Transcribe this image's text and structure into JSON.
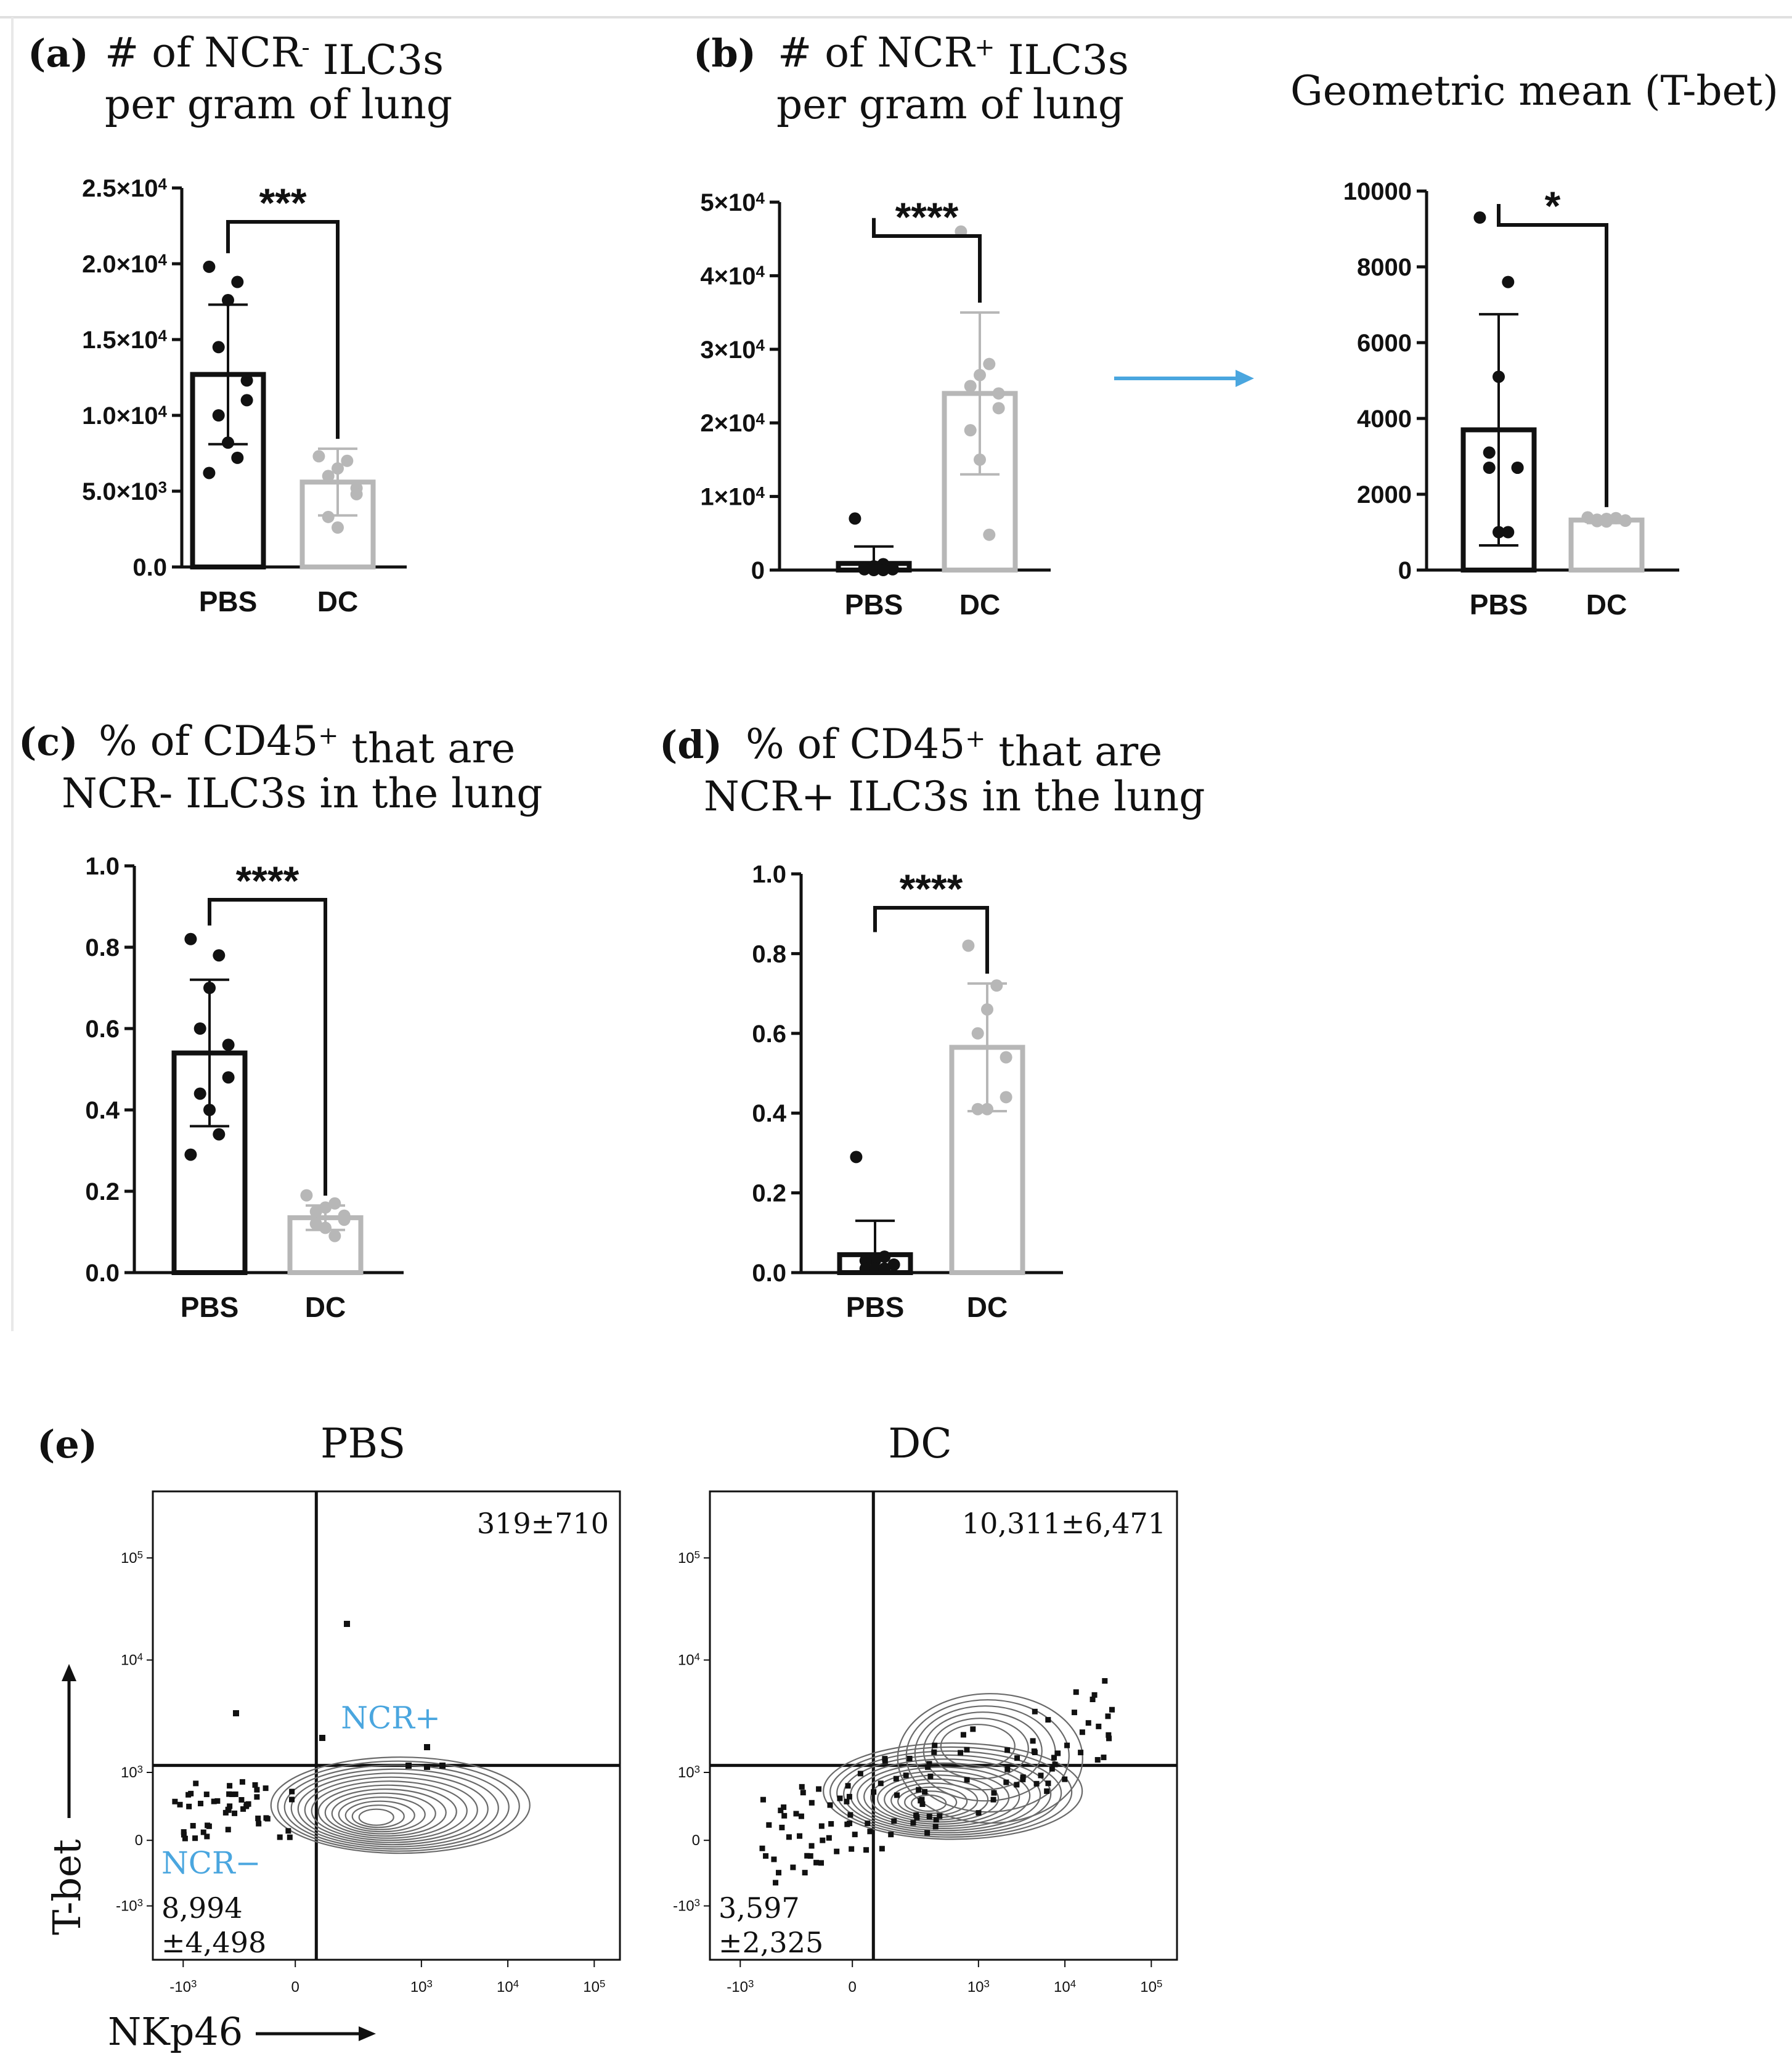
{
  "colors": {
    "pbs": "#111111",
    "dc": "#b7b7b7",
    "accent": "#4aa6df",
    "axis": "#111111"
  },
  "chart_data": [
    {
      "id": "a",
      "type": "bar",
      "panel_label": "(a)",
      "title_line1": "# of NCR",
      "title_sup": "-",
      "title_rest": " ILC3s",
      "title_line2": "per gram of lung",
      "categories": [
        "PBS",
        "DC"
      ],
      "values": [
        12700,
        5600
      ],
      "error": [
        4600,
        2200
      ],
      "points": [
        [
          19800,
          18800,
          17600,
          14500,
          12300,
          11000,
          10000,
          8200,
          7200,
          6200
        ],
        [
          7300,
          7000,
          6500,
          6000,
          5200,
          4800,
          3300,
          2600
        ]
      ],
      "ylim": [
        0,
        25000
      ],
      "ticks": [
        {
          "v": 0,
          "b": "0.0",
          "e": ""
        },
        {
          "v": 5000,
          "b": "5.0×10",
          "e": "3"
        },
        {
          "v": 10000,
          "b": "1.0×10",
          "e": "4"
        },
        {
          "v": 15000,
          "b": "1.5×10",
          "e": "4"
        },
        {
          "v": 20000,
          "b": "2.0×10",
          "e": "4"
        },
        {
          "v": 25000,
          "b": "2.5×10",
          "e": "4"
        }
      ],
      "significance": "***"
    },
    {
      "id": "b",
      "type": "bar",
      "panel_label": "(b)",
      "title_line1": "# of NCR",
      "title_sup": "+",
      "title_rest": " ILC3s",
      "title_line2": "per gram of lung",
      "categories": [
        "PBS",
        "DC"
      ],
      "values": [
        900,
        24000
      ],
      "error": [
        2300,
        11000
      ],
      "points": [
        [
          7000,
          800,
          500,
          300,
          200,
          100,
          100,
          0,
          0
        ],
        [
          46000,
          28000,
          26500,
          25000,
          24000,
          22000,
          19000,
          15000,
          4800
        ]
      ],
      "ylim": [
        0,
        50000
      ],
      "ticks": [
        {
          "v": 0,
          "b": "0",
          "e": ""
        },
        {
          "v": 10000,
          "b": "1×10",
          "e": "4"
        },
        {
          "v": 20000,
          "b": "2×10",
          "e": "4"
        },
        {
          "v": 30000,
          "b": "3×10",
          "e": "4"
        },
        {
          "v": 40000,
          "b": "4×10",
          "e": "4"
        },
        {
          "v": 50000,
          "b": "5×10",
          "e": "4"
        }
      ],
      "significance": "****"
    },
    {
      "id": "tbet",
      "type": "bar",
      "panel_label": "",
      "title_line1": "Geometric mean (T-bet)",
      "title_sup": "",
      "title_rest": "",
      "title_line2": "",
      "categories": [
        "PBS",
        "DC"
      ],
      "values": [
        3700,
        1320
      ],
      "error": [
        3050,
        80
      ],
      "points": [
        [
          9300,
          7600,
          5100,
          3100,
          2700,
          2700,
          2700,
          1000,
          1000
        ],
        [
          1390,
          1370,
          1350,
          1330,
          1310,
          1300,
          1290,
          1280
        ]
      ],
      "ylim": [
        0,
        10000
      ],
      "ticks": [
        {
          "v": 0,
          "b": "0",
          "e": ""
        },
        {
          "v": 2000,
          "b": "2000",
          "e": ""
        },
        {
          "v": 4000,
          "b": "4000",
          "e": ""
        },
        {
          "v": 6000,
          "b": "6000",
          "e": ""
        },
        {
          "v": 8000,
          "b": "8000",
          "e": ""
        },
        {
          "v": 10000,
          "b": "10000",
          "e": ""
        }
      ],
      "significance": "*"
    },
    {
      "id": "c",
      "type": "bar",
      "panel_label": "(c)",
      "title_line1": "% of CD45",
      "title_sup": "+",
      "title_rest": " that are",
      "title_line2": "NCR- ILC3s in the lung",
      "categories": [
        "PBS",
        "DC"
      ],
      "values": [
        0.54,
        0.135
      ],
      "error": [
        0.18,
        0.03
      ],
      "points": [
        [
          0.82,
          0.78,
          0.7,
          0.6,
          0.56,
          0.48,
          0.44,
          0.4,
          0.34,
          0.29
        ],
        [
          0.19,
          0.17,
          0.16,
          0.15,
          0.14,
          0.13,
          0.12,
          0.11,
          0.09
        ]
      ],
      "ylim": [
        0,
        1.0
      ],
      "ticks": [
        {
          "v": 0,
          "b": "0.0",
          "e": ""
        },
        {
          "v": 0.2,
          "b": "0.2",
          "e": ""
        },
        {
          "v": 0.4,
          "b": "0.4",
          "e": ""
        },
        {
          "v": 0.6,
          "b": "0.6",
          "e": ""
        },
        {
          "v": 0.8,
          "b": "0.8",
          "e": ""
        },
        {
          "v": 1.0,
          "b": "1.0",
          "e": ""
        }
      ],
      "significance": "****"
    },
    {
      "id": "d",
      "type": "bar",
      "panel_label": "(d)",
      "title_line1": "% of CD45",
      "title_sup": "+",
      "title_rest": " that are",
      "title_line2": "NCR+ ILC3s in the lung",
      "categories": [
        "PBS",
        "DC"
      ],
      "values": [
        0.045,
        0.565
      ],
      "error": [
        0.085,
        0.16
      ],
      "points": [
        [
          0.29,
          0.04,
          0.03,
          0.03,
          0.02,
          0.02,
          0.01,
          0.01,
          0.01
        ],
        [
          0.82,
          0.72,
          0.66,
          0.6,
          0.54,
          0.44,
          0.41,
          0.41
        ]
      ],
      "ylim": [
        0,
        1.0
      ],
      "ticks": [
        {
          "v": 0,
          "b": "0.0",
          "e": ""
        },
        {
          "v": 0.2,
          "b": "0.2",
          "e": ""
        },
        {
          "v": 0.4,
          "b": "0.4",
          "e": ""
        },
        {
          "v": 0.6,
          "b": "0.6",
          "e": ""
        },
        {
          "v": 0.8,
          "b": "0.8",
          "e": ""
        },
        {
          "v": 1.0,
          "b": "1.0",
          "e": ""
        }
      ],
      "significance": "****"
    }
  ],
  "flow": {
    "panel_label": "(e)",
    "y_axis_label": "T-bet",
    "x_axis_label": "NKp46",
    "x_ticks": [
      {
        "b": "-10",
        "e": "3"
      },
      {
        "b": "0",
        "e": ""
      },
      {
        "b": "10",
        "e": "3"
      },
      {
        "b": "10",
        "e": "4"
      },
      {
        "b": "10",
        "e": "5"
      }
    ],
    "y_ticks": [
      {
        "b": "10",
        "e": "5"
      },
      {
        "b": "10",
        "e": "4"
      },
      {
        "b": "10",
        "e": "3"
      },
      {
        "b": "0",
        "e": ""
      },
      {
        "b": "-10",
        "e": "3"
      }
    ],
    "gate_ncr_pos": "NCR+",
    "gate_ncr_neg": "NCR−",
    "plots": [
      {
        "title": "PBS",
        "upper_right_count": "319±710",
        "lower_left_count_line1": "8,994",
        "lower_left_count_line2": "±4,498"
      },
      {
        "title": "DC",
        "upper_right_count": "10,311±6,471",
        "lower_left_count_line1": "3,597",
        "lower_left_count_line2": "±2,325"
      }
    ]
  }
}
